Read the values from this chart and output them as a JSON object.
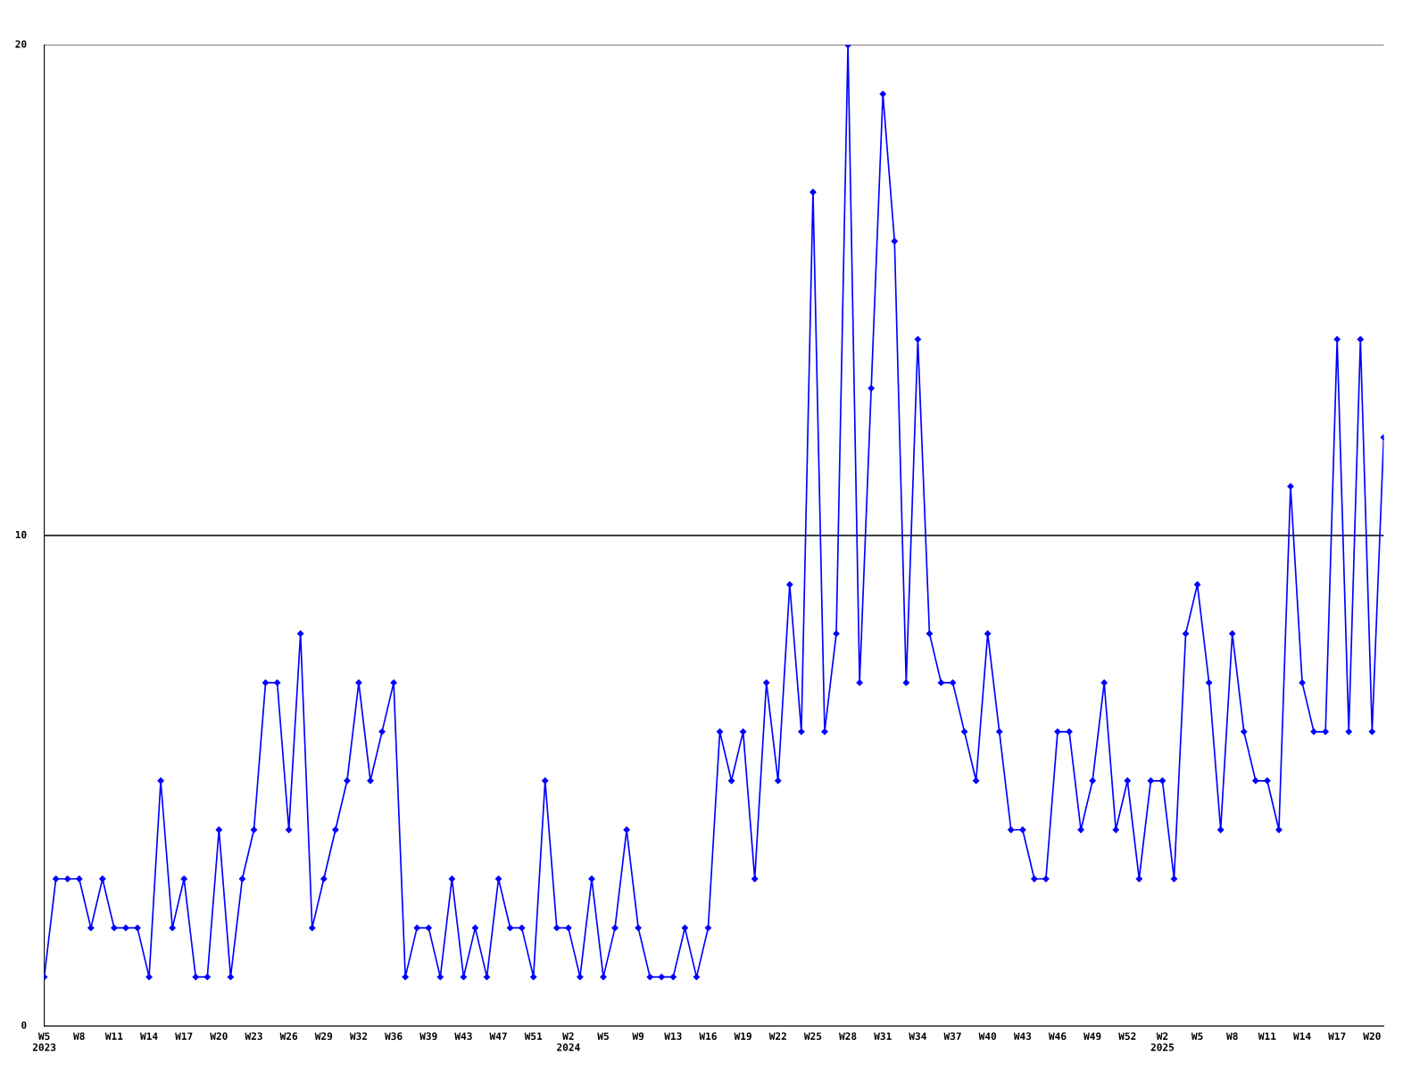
{
  "chart_data": {
    "type": "line",
    "categories": [
      "W5\n2023",
      null,
      null,
      "W8",
      null,
      null,
      "W11",
      null,
      null,
      "W14",
      null,
      null,
      "W17",
      null,
      null,
      "W20",
      null,
      null,
      "W23",
      null,
      null,
      "W26",
      null,
      null,
      "W29",
      null,
      null,
      "W32",
      null,
      null,
      "W36",
      null,
      null,
      "W39",
      null,
      null,
      "W43",
      null,
      null,
      "W47",
      null,
      null,
      "W51",
      null,
      null,
      "W2\n2024",
      null,
      null,
      "W5",
      null,
      null,
      "W9",
      null,
      null,
      "W13",
      null,
      null,
      "W16",
      null,
      null,
      "W19",
      null,
      null,
      "W22",
      null,
      null,
      "W25",
      null,
      null,
      "W28",
      null,
      null,
      "W31",
      null,
      null,
      "W34",
      null,
      null,
      "W37",
      null,
      null,
      "W40",
      null,
      null,
      "W43",
      null,
      null,
      "W46",
      null,
      null,
      "W49",
      null,
      null,
      "W52",
      null,
      null,
      "W2\n2025",
      null,
      null,
      "W5",
      null,
      null,
      "W8",
      null,
      null,
      "W11",
      null,
      null,
      "W14",
      null,
      null,
      "W17",
      null,
      null,
      "W20",
      null
    ],
    "series": [
      {
        "color": "#0000ff",
        "values": [
          1,
          3,
          3,
          3,
          2,
          3,
          2,
          2,
          2,
          1,
          5,
          2,
          3,
          1,
          1,
          4,
          1,
          3,
          4,
          7,
          7,
          4,
          8,
          2,
          3,
          4,
          5,
          7,
          5,
          6,
          7,
          1,
          2,
          2,
          1,
          3,
          1,
          2,
          1,
          3,
          2,
          2,
          1,
          5,
          2,
          2,
          1,
          3,
          1,
          2,
          4,
          2,
          1,
          1,
          1,
          2,
          1,
          2,
          6,
          5,
          6,
          3,
          7,
          5,
          9,
          6,
          17,
          6,
          8,
          20,
          7,
          13,
          19,
          16,
          7,
          14,
          8,
          7,
          7,
          6,
          5,
          8,
          6,
          4,
          4,
          3,
          3,
          6,
          6,
          4,
          5,
          7,
          4,
          5,
          3,
          5,
          5,
          3,
          8,
          9,
          7,
          4,
          8,
          6,
          5,
          5,
          4,
          11,
          7,
          6,
          6,
          14,
          6,
          14,
          6,
          12
        ]
      }
    ],
    "ylim": [
      0,
      20
    ],
    "yticks": [
      0,
      10,
      20
    ],
    "grid": "y",
    "marker": "diamond",
    "line_style": "solid",
    "legend": false
  }
}
